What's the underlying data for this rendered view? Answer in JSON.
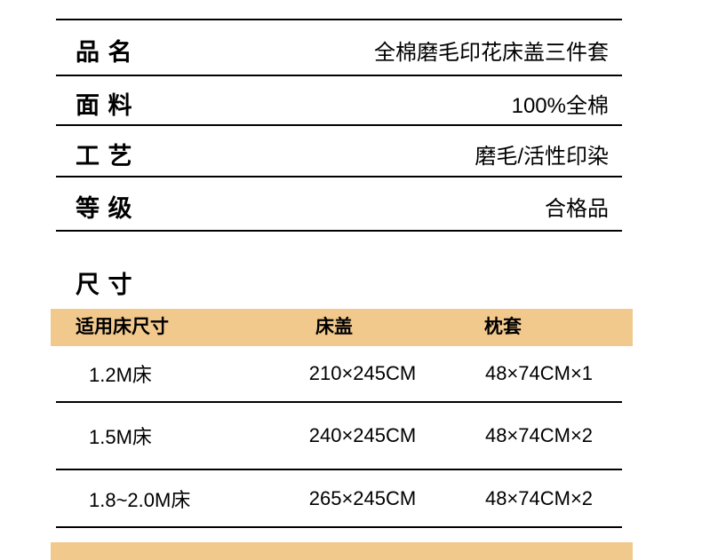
{
  "colors": {
    "band": "#F2C98C",
    "ink": "#000000"
  },
  "specs": {
    "rows": [
      {
        "label": "品 名",
        "value": "全棉磨毛印花床盖三件套"
      },
      {
        "label": "面 料",
        "value": "100%全棉"
      },
      {
        "label": "工 艺",
        "value": "磨毛/活性印染"
      },
      {
        "label": "等 级",
        "value": "合格品"
      }
    ]
  },
  "sizes": {
    "title": "尺 寸",
    "headers": [
      "适用床尺寸",
      "床盖",
      "枕套"
    ],
    "rows": [
      [
        "1.2M床",
        "210×245CM",
        "48×74CM×1"
      ],
      [
        "1.5M床",
        "240×245CM",
        "48×74CM×2"
      ],
      [
        "1.8~2.0M床",
        "265×245CM",
        "48×74CM×2"
      ]
    ]
  }
}
